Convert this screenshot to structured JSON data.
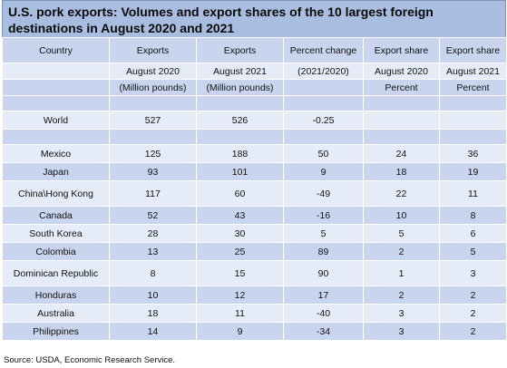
{
  "title": "U.S. pork exports: Volumes and export shares of the 10 largest foreign destinations in August 2020 and 2021",
  "header": {
    "row1": [
      "Country",
      "Exports",
      "Exports",
      "Percent change",
      "Export share",
      "Export share"
    ],
    "row2": [
      "",
      "August 2020",
      "August 2021",
      "(2021/2020)",
      "August 2020",
      "August 2021"
    ],
    "row3": [
      "",
      "(Million pounds)",
      "(Million pounds)",
      "",
      "Percent",
      "Percent"
    ]
  },
  "world": {
    "country": "World",
    "exports_2020": "527",
    "exports_2021": "526",
    "pct_change": "-0.25",
    "share_2020": "",
    "share_2021": ""
  },
  "rows": [
    {
      "country": "Mexico",
      "exports_2020": "125",
      "exports_2021": "188",
      "pct_change": "50",
      "share_2020": "24",
      "share_2021": "36"
    },
    {
      "country": "Japan",
      "exports_2020": "93",
      "exports_2021": "101",
      "pct_change": "9",
      "share_2020": "18",
      "share_2021": "19"
    },
    {
      "country": "China\\Hong Kong",
      "exports_2020": "117",
      "exports_2021": "60",
      "pct_change": "-49",
      "share_2020": "22",
      "share_2021": "11"
    },
    {
      "country": "Canada",
      "exports_2020": "52",
      "exports_2021": "43",
      "pct_change": "-16",
      "share_2020": "10",
      "share_2021": "8"
    },
    {
      "country": "South Korea",
      "exports_2020": "28",
      "exports_2021": "30",
      "pct_change": "5",
      "share_2020": "5",
      "share_2021": "6"
    },
    {
      "country": "Colombia",
      "exports_2020": "13",
      "exports_2021": "25",
      "pct_change": "89",
      "share_2020": "2",
      "share_2021": "5"
    },
    {
      "country": "Dominican Republic",
      "exports_2020": "8",
      "exports_2021": "15",
      "pct_change": "90",
      "share_2020": "1",
      "share_2021": "3"
    },
    {
      "country": "Honduras",
      "exports_2020": "10",
      "exports_2021": "12",
      "pct_change": "17",
      "share_2020": "2",
      "share_2021": "2"
    },
    {
      "country": "Australia",
      "exports_2020": "18",
      "exports_2021": "11",
      "pct_change": "-40",
      "share_2020": "3",
      "share_2021": "2"
    },
    {
      "country": "Philippines",
      "exports_2020": "14",
      "exports_2021": "9",
      "pct_change": "-34",
      "share_2020": "3",
      "share_2021": "2"
    }
  ],
  "source": "Source: USDA, Economic Research Service.",
  "colors": {
    "title_band": "#a9bde0",
    "row_dark": "#c9d5ee",
    "row_light": "#e5ebf7"
  }
}
